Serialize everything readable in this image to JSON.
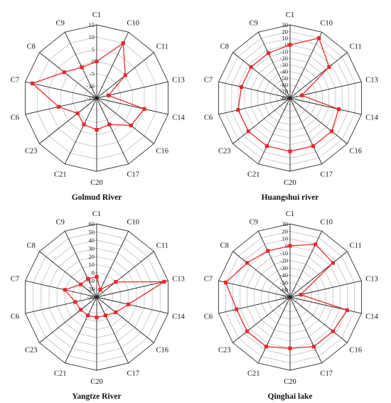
{
  "figure": {
    "panel_labels": [
      "Golmud River",
      "Huangshui river",
      "Yangtze River",
      "Qinghai lake"
    ],
    "line_color": "#e8282b",
    "axis_color": "#222222",
    "grid_color": "#b8b8b8"
  },
  "chart_data": [
    {
      "type": "radar",
      "title": "Golmud River",
      "categories": [
        "C1",
        "C10",
        "C11",
        "C13",
        "C14",
        "C16",
        "C17",
        "C20",
        "C21",
        "C23",
        "C6",
        "C7",
        "C8",
        "C9"
      ],
      "tick_labels": [
        "-15",
        "-10",
        "-5",
        "0",
        "5",
        "10",
        "15"
      ],
      "rlim": [
        -15,
        15
      ],
      "grid": true,
      "series": [
        {
          "values": [
            0,
            10,
            0,
            -10,
            5,
            3,
            -3,
            -2,
            -3,
            -5,
            1,
            12,
            2,
            -1
          ]
        }
      ]
    },
    {
      "type": "radar",
      "title": "Huangshui river",
      "categories": [
        "C1",
        "C10",
        "C11",
        "C13",
        "C14",
        "C16",
        "C17",
        "C20",
        "C21",
        "C23",
        "C6",
        "C7",
        "C8",
        "C9"
      ],
      "tick_labels": [
        "-80",
        "-70",
        "-60",
        "-50",
        "-40",
        "-30",
        "-20",
        "-10",
        "0",
        "10",
        "20",
        "30"
      ],
      "rlim": [
        -80,
        30
      ],
      "grid": true,
      "series": [
        {
          "values": [
            0,
            20,
            -5,
            -62,
            -5,
            0,
            0,
            0,
            0,
            0,
            0,
            -5,
            -5,
            -5
          ]
        }
      ]
    },
    {
      "type": "radar",
      "title": "Yangtze River",
      "categories": [
        "C1",
        "C10",
        "C11",
        "C13",
        "C14",
        "C16",
        "C17",
        "C20",
        "C21",
        "C23",
        "C6",
        "C7",
        "C8",
        "C9"
      ],
      "tick_labels": [
        "-30",
        "-20",
        "-10",
        "0",
        "10",
        "20",
        "30",
        "40",
        "50",
        "60"
      ],
      "rlim": [
        -30,
        60
      ],
      "grid": true,
      "series": [
        {
          "values": [
            -5,
            -20,
            0,
            55,
            10,
            0,
            -5,
            -5,
            -5,
            -5,
            -3,
            10,
            -5,
            -5
          ]
        }
      ]
    },
    {
      "type": "radar",
      "title": "Qinghai lake",
      "categories": [
        "C1",
        "C10",
        "C11",
        "C13",
        "C14",
        "C16",
        "C17",
        "C20",
        "C21",
        "C23",
        "C6",
        "C7",
        "C8",
        "C9"
      ],
      "tick_labels": [
        "-70",
        "-60",
        "-50",
        "-40",
        "-30",
        "-20",
        "-10",
        "0",
        "10",
        "20",
        "30"
      ],
      "rlim": [
        -70,
        30
      ],
      "grid": true,
      "series": [
        {
          "values": [
            0,
            10,
            5,
            -55,
            10,
            5,
            5,
            0,
            5,
            5,
            5,
            20,
            5,
            0
          ]
        }
      ]
    }
  ]
}
